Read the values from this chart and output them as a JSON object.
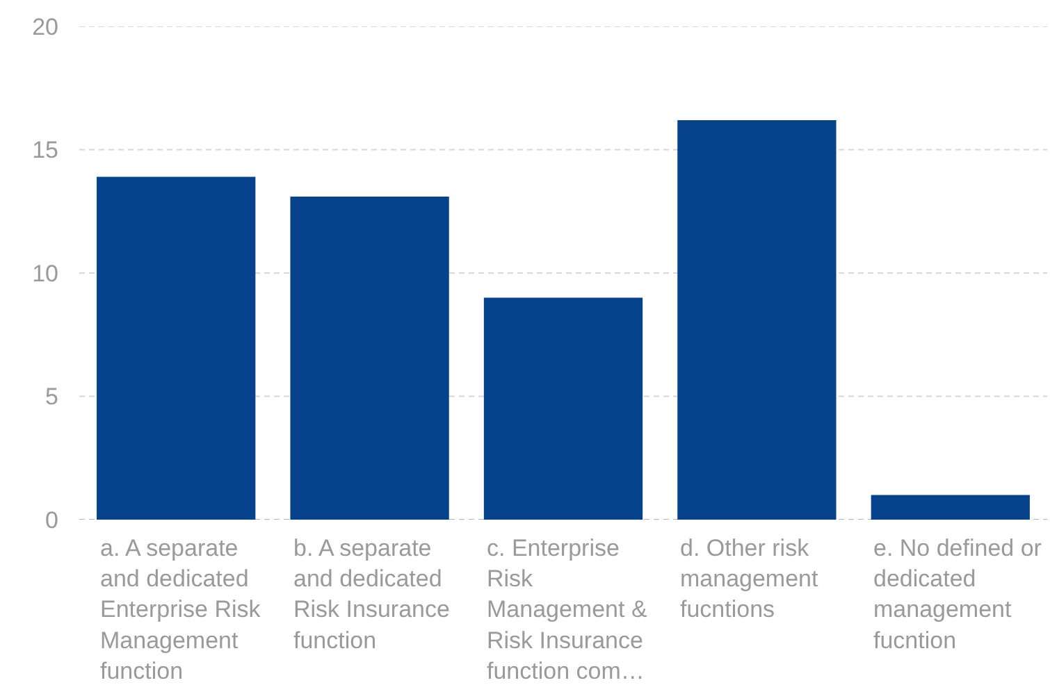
{
  "chart_data": {
    "type": "bar",
    "categories": [
      "a. A separate and dedicated Enterprise Risk Management function",
      "b. A separate and dedicated Risk Insurance function",
      "c. Enterprise Risk Management & Risk Insurance function com…",
      "d. Other risk management fucntions",
      "e. No defined or dedicated management fucntion"
    ],
    "values": [
      13.9,
      13.1,
      9,
      16.2,
      1
    ],
    "color": "#07428c",
    "ylim": [
      0,
      20
    ],
    "yticks": [
      0,
      5,
      10,
      15,
      20
    ],
    "grid": "y"
  }
}
